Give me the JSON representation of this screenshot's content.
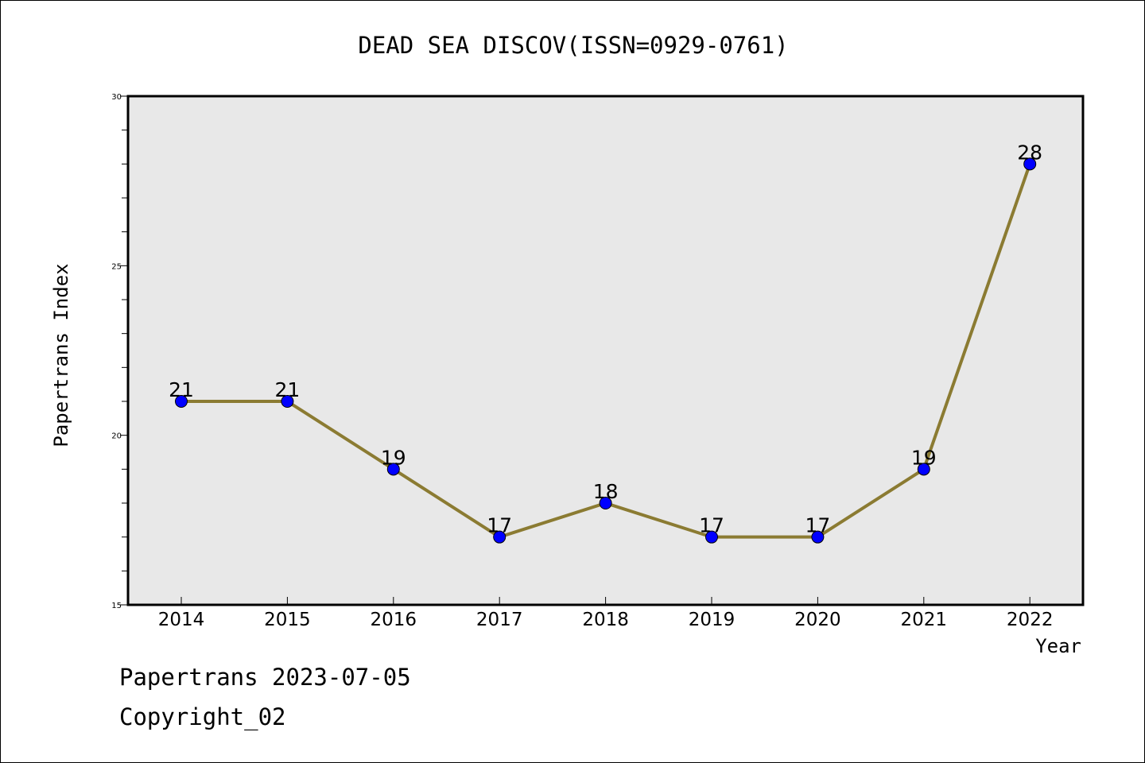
{
  "chart_data": {
    "type": "line",
    "title": "DEAD SEA DISCOV(ISSN=0929-0761)",
    "xlabel": "Year",
    "ylabel": "Papertrans Index",
    "x": [
      "2014",
      "2015",
      "2016",
      "2017",
      "2018",
      "2019",
      "2020",
      "2021",
      "2022"
    ],
    "series": [
      {
        "values": [
          21,
          21,
          19,
          17,
          18,
          17,
          17,
          19,
          28
        ],
        "data_labels": [
          "21",
          "21",
          "19",
          "17",
          "18",
          "17",
          "17",
          "19",
          "28"
        ],
        "line_color": "#8b7b32",
        "marker_color": "#0000ff"
      }
    ],
    "ylim": [
      15,
      30
    ],
    "y_ticks": [
      "15",
      "20",
      "25",
      "30"
    ],
    "grid": false,
    "plot_background": "#e8e8e8"
  },
  "footer": {
    "date_line": "Papertrans 2023-07-05",
    "copyright_line": "Copyright_02"
  }
}
